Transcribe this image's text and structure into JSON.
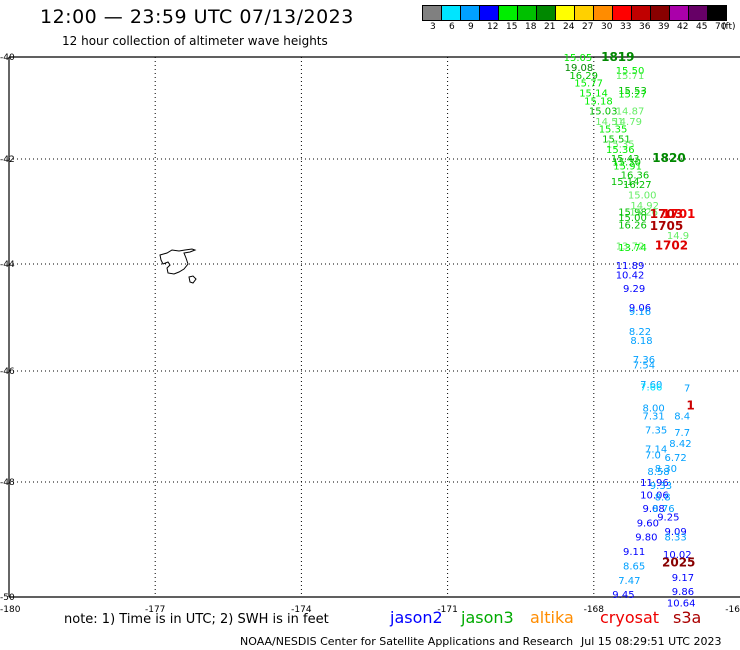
{
  "header": {
    "title": "12:00 — 23:59 UTC 07/13/2023",
    "subtitle": "12 hour collection of altimeter wave heights"
  },
  "legend": {
    "unit": "(ft)",
    "bins": [
      {
        "label": "3",
        "color": "#808080"
      },
      {
        "label": "6",
        "color": "#00e5ff"
      },
      {
        "label": "9",
        "color": "#00a0ff"
      },
      {
        "label": "12",
        "color": "#0000ff"
      },
      {
        "label": "15",
        "color": "#00ee00"
      },
      {
        "label": "18",
        "color": "#00c000"
      },
      {
        "label": "21",
        "color": "#008800"
      },
      {
        "label": "24",
        "color": "#ffff00"
      },
      {
        "label": "27",
        "color": "#ffd000"
      },
      {
        "label": "30",
        "color": "#ff8c00"
      },
      {
        "label": "33",
        "color": "#ff0000"
      },
      {
        "label": "36",
        "color": "#c00000"
      },
      {
        "label": "39",
        "color": "#880000"
      },
      {
        "label": "42",
        "color": "#aa00aa"
      },
      {
        "label": "45",
        "color": "#660066"
      },
      {
        "label": "70",
        "color": "#000000"
      }
    ]
  },
  "axes": {
    "lat_labels": [
      "-40",
      "-42",
      "-44",
      "-46",
      "-48",
      "-50"
    ],
    "lon_labels": [
      "-180",
      "-177",
      "-174",
      "-171",
      "-168",
      "-16"
    ]
  },
  "readings": [
    {
      "text": "15.05",
      "lat": -40.0,
      "lon": -168.62,
      "color": "#00ee00"
    },
    {
      "text": "1819",
      "lat": -40.0,
      "lon": -167.85,
      "color": "#008800",
      "bold": true
    },
    {
      "text": "19.08",
      "lat": -40.2,
      "lon": -168.6,
      "color": "#008800"
    },
    {
      "text": "15.50",
      "lat": -40.25,
      "lon": -167.55,
      "color": "#00ee00"
    },
    {
      "text": "16.29",
      "lat": -40.35,
      "lon": -168.5,
      "color": "#00c000"
    },
    {
      "text": "15.71",
      "lat": -40.35,
      "lon": -167.55,
      "color": "#66ee66"
    },
    {
      "text": "15.77",
      "lat": -40.5,
      "lon": -168.4,
      "color": "#00ee00"
    },
    {
      "text": "15.14",
      "lat": -40.7,
      "lon": -168.3,
      "color": "#00ee00"
    },
    {
      "text": "15.53",
      "lat": -40.65,
      "lon": -167.5,
      "color": "#00c000"
    },
    {
      "text": "15.27",
      "lat": -40.72,
      "lon": -167.5,
      "color": "#00ee00"
    },
    {
      "text": "15.18",
      "lat": -40.85,
      "lon": -168.2,
      "color": "#00ee00"
    },
    {
      "text": "15.03",
      "lat": -41.05,
      "lon": -168.1,
      "color": "#00c000"
    },
    {
      "text": "14.87",
      "lat": -41.05,
      "lon": -167.55,
      "color": "#66ee66"
    },
    {
      "text": "14.51",
      "lat": -41.25,
      "lon": -167.97,
      "color": "#66ee66"
    },
    {
      "text": "14.79",
      "lat": -41.25,
      "lon": -167.6,
      "color": "#66ee66"
    },
    {
      "text": "15.35",
      "lat": -41.4,
      "lon": -167.9,
      "color": "#00ee00"
    },
    {
      "text": "15.51",
      "lat": -41.6,
      "lon": -167.83,
      "color": "#00c000"
    },
    {
      "text": "15.35",
      "lat": -41.7,
      "lon": -167.75,
      "color": "#66ee66"
    },
    {
      "text": "15.36",
      "lat": -41.8,
      "lon": -167.75,
      "color": "#00ee00"
    },
    {
      "text": "15.43",
      "lat": -41.98,
      "lon": -167.65,
      "color": "#00c000"
    },
    {
      "text": "1820",
      "lat": -41.98,
      "lon": -166.8,
      "color": "#008800",
      "bold": true
    },
    {
      "text": "15.30",
      "lat": -42.05,
      "lon": -167.62,
      "color": "#00c000"
    },
    {
      "text": "15.91",
      "lat": -42.12,
      "lon": -167.6,
      "color": "#00ee00"
    },
    {
      "text": "16.36",
      "lat": -42.3,
      "lon": -167.45,
      "color": "#00c000"
    },
    {
      "text": "15.14",
      "lat": -42.42,
      "lon": -167.65,
      "color": "#00c000"
    },
    {
      "text": "16.27",
      "lat": -42.48,
      "lon": -167.4,
      "color": "#00c000"
    },
    {
      "text": "15.00",
      "lat": -42.68,
      "lon": -167.3,
      "color": "#66ee66"
    },
    {
      "text": "14.92",
      "lat": -42.88,
      "lon": -167.25,
      "color": "#66ee66"
    },
    {
      "text": "15.98",
      "lat": -43.0,
      "lon": -167.5,
      "color": "#00c000"
    },
    {
      "text": "15.26",
      "lat": -43.0,
      "lon": -167.27,
      "color": "#66ee66"
    },
    {
      "text": "1703",
      "lat": -43.05,
      "lon": -166.85,
      "color": "#cc0000",
      "bold": true
    },
    {
      "text": "1701",
      "lat": -43.05,
      "lon": -166.6,
      "color": "#ee0000",
      "bold": true
    },
    {
      "text": "15.00",
      "lat": -43.1,
      "lon": -167.5,
      "color": "#00c000"
    },
    {
      "text": "16.26",
      "lat": -43.25,
      "lon": -167.5,
      "color": "#00c000"
    },
    {
      "text": "1705",
      "lat": -43.28,
      "lon": -166.85,
      "color": "#aa0000",
      "bold": true
    },
    {
      "text": "14.9",
      "lat": -43.45,
      "lon": -166.5,
      "color": "#66ee66"
    },
    {
      "text": "13.72",
      "lat": -43.65,
      "lon": -167.55,
      "color": "#66ee66"
    },
    {
      "text": "13.74",
      "lat": -43.68,
      "lon": -167.5,
      "color": "#00ee00"
    },
    {
      "text": "1702",
      "lat": -43.65,
      "lon": -166.75,
      "color": "#dd0000",
      "bold": true
    },
    {
      "text": "11.89",
      "lat": -44.02,
      "lon": -167.55,
      "color": "#0000ff"
    },
    {
      "text": "10.42",
      "lat": -44.2,
      "lon": -167.55,
      "color": "#0000ff"
    },
    {
      "text": "9.29",
      "lat": -44.45,
      "lon": -167.4,
      "color": "#0000ff"
    },
    {
      "text": "9.06",
      "lat": -44.8,
      "lon": -167.28,
      "color": "#0000ff"
    },
    {
      "text": "9.16",
      "lat": -44.88,
      "lon": -167.28,
      "color": "#00a0ff"
    },
    {
      "text": "8.22",
      "lat": -45.25,
      "lon": -167.28,
      "color": "#00a0ff"
    },
    {
      "text": "8.18",
      "lat": -45.42,
      "lon": -167.25,
      "color": "#00a0ff"
    },
    {
      "text": "7.36",
      "lat": -45.78,
      "lon": -167.2,
      "color": "#00a0ff"
    },
    {
      "text": "7.54",
      "lat": -45.88,
      "lon": -167.2,
      "color": "#00a0ff"
    },
    {
      "text": "7.60",
      "lat": -46.23,
      "lon": -167.05,
      "color": "#00a0ff"
    },
    {
      "text": "7.66",
      "lat": -46.28,
      "lon": -167.05,
      "color": "#00e5ff"
    },
    {
      "text": "7",
      "lat": -46.3,
      "lon": -166.15,
      "color": "#00a0ff"
    },
    {
      "text": "8.00",
      "lat": -46.66,
      "lon": -167.0,
      "color": "#00a0ff"
    },
    {
      "text": "1",
      "lat": -46.62,
      "lon": -166.1,
      "color": "#cc0000",
      "bold": true
    },
    {
      "text": "7.31",
      "lat": -46.8,
      "lon": -167.0,
      "color": "#00a0ff"
    },
    {
      "text": "8.4",
      "lat": -46.8,
      "lon": -166.35,
      "color": "#00a0ff"
    },
    {
      "text": "7.35",
      "lat": -47.05,
      "lon": -166.95,
      "color": "#00a0ff"
    },
    {
      "text": "7.7",
      "lat": -47.1,
      "lon": -166.35,
      "color": "#00a0ff"
    },
    {
      "text": "8.42",
      "lat": -47.3,
      "lon": -166.45,
      "color": "#00a0ff"
    },
    {
      "text": "7.14",
      "lat": -47.4,
      "lon": -166.95,
      "color": "#00a0ff"
    },
    {
      "text": "7.0",
      "lat": -47.5,
      "lon": -166.95,
      "color": "#00a0ff"
    },
    {
      "text": "6.72",
      "lat": -47.55,
      "lon": -166.55,
      "color": "#00a0ff"
    },
    {
      "text": "8.30",
      "lat": -47.75,
      "lon": -166.75,
      "color": "#00a0ff"
    },
    {
      "text": "8.58",
      "lat": -47.8,
      "lon": -166.9,
      "color": "#00a0ff"
    },
    {
      "text": "11.96",
      "lat": -48.0,
      "lon": -167.05,
      "color": "#0000ff"
    },
    {
      "text": "9.33",
      "lat": -48.05,
      "lon": -166.85,
      "color": "#00a0ff"
    },
    {
      "text": "10.06",
      "lat": -48.22,
      "lon": -167.05,
      "color": "#0000ff"
    },
    {
      "text": "8.8",
      "lat": -48.25,
      "lon": -166.75,
      "color": "#00a0ff"
    },
    {
      "text": "9.08",
      "lat": -48.45,
      "lon": -167.0,
      "color": "#0000ff"
    },
    {
      "text": "8.76",
      "lat": -48.45,
      "lon": -166.8,
      "color": "#00a0ff"
    },
    {
      "text": "9.25",
      "lat": -48.6,
      "lon": -166.7,
      "color": "#0000ff"
    },
    {
      "text": "9.60",
      "lat": -48.7,
      "lon": -167.12,
      "color": "#0000ff"
    },
    {
      "text": "9.09",
      "lat": -48.85,
      "lon": -166.55,
      "color": "#0000ff"
    },
    {
      "text": "9.80",
      "lat": -48.95,
      "lon": -167.15,
      "color": "#0000ff"
    },
    {
      "text": "8.33",
      "lat": -48.95,
      "lon": -166.55,
      "color": "#00a0ff"
    },
    {
      "text": "9.11",
      "lat": -49.2,
      "lon": -167.4,
      "color": "#0000ff"
    },
    {
      "text": "10.02",
      "lat": -49.25,
      "lon": -166.58,
      "color": "#0000ff"
    },
    {
      "text": "8.65",
      "lat": -49.45,
      "lon": -167.4,
      "color": "#00a0ff"
    },
    {
      "text": "2025",
      "lat": -49.4,
      "lon": -166.6,
      "color": "#880000",
      "bold": true
    },
    {
      "text": "7.47",
      "lat": -49.7,
      "lon": -167.5,
      "color": "#00a0ff"
    },
    {
      "text": "9.17",
      "lat": -49.65,
      "lon": -166.4,
      "color": "#0000ff"
    },
    {
      "text": "9.45",
      "lat": -49.95,
      "lon": -167.62,
      "color": "#0000ff"
    },
    {
      "text": "9.86",
      "lat": -49.9,
      "lon": -166.4,
      "color": "#0000ff"
    },
    {
      "text": "10.64",
      "lat": -50.1,
      "lon": -166.5,
      "color": "#0000ff"
    }
  ],
  "footer": {
    "note": "note:  1) Time is in UTC; 2) SWH is in feet",
    "satellites": [
      {
        "name": "jason2",
        "color": "#0000ff"
      },
      {
        "name": "jason3",
        "color": "#00aa00"
      },
      {
        "name": "altika",
        "color": "#ff8c00"
      },
      {
        "name": "cryosat",
        "color": "#ee0000"
      },
      {
        "name": "s3a",
        "color": "#aa0000"
      }
    ],
    "credit": "NOAA/NESDIS Center for Satellite Applications and Research",
    "timestamp": "Jul 15 08:29:51 UTC 2023"
  }
}
